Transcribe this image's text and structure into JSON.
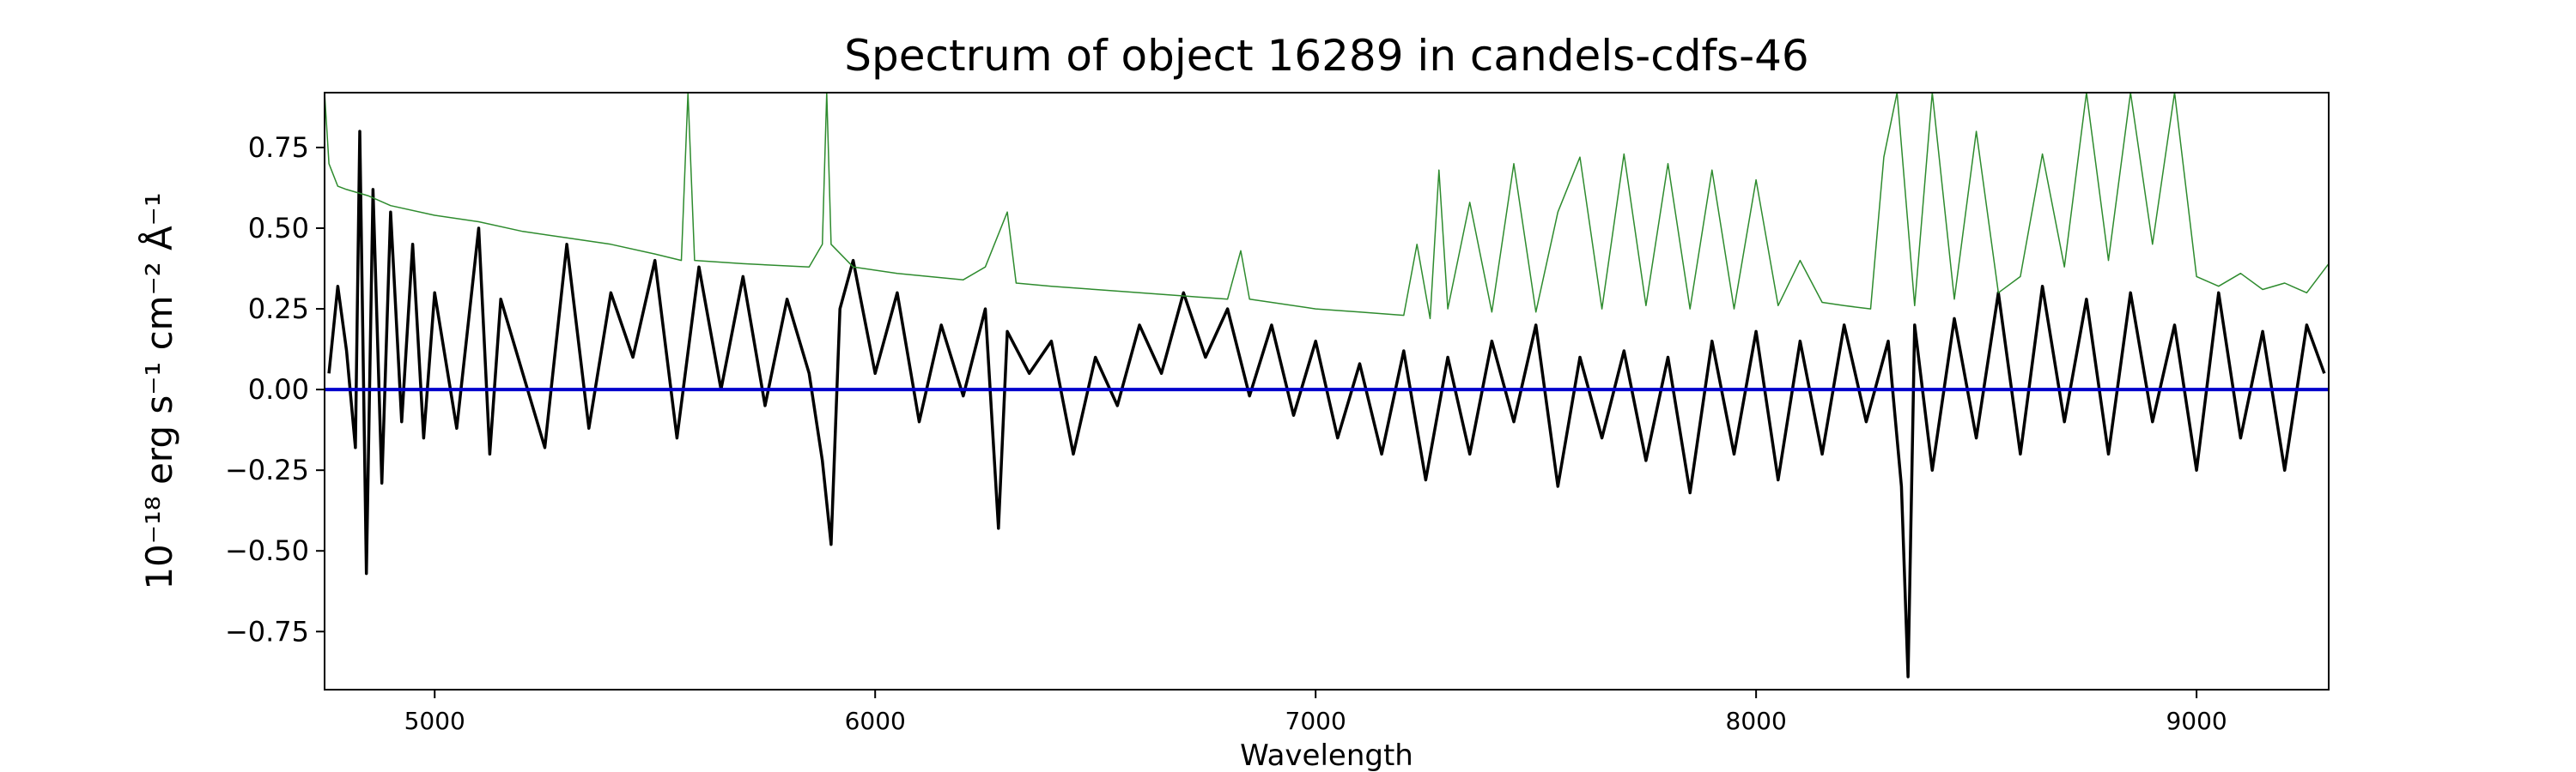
{
  "chart_data": {
    "type": "line",
    "title": "Spectrum of object 16289 in candels-cdfs-46",
    "xlabel": "Wavelength",
    "ylabel": "10⁻¹⁸ erg s⁻¹ cm⁻² Å⁻¹",
    "xlim": [
      4750,
      9300
    ],
    "ylim": [
      -0.93,
      0.92
    ],
    "xticks": [
      5000,
      6000,
      7000,
      8000,
      9000
    ],
    "xtick_labels": [
      "5000",
      "6000",
      "7000",
      "8000",
      "9000"
    ],
    "yticks": [
      0.75,
      0.5,
      0.25,
      0.0,
      -0.25,
      -0.5,
      -0.75
    ],
    "ytick_labels": [
      "0.75",
      "0.50",
      "0.25",
      "0.00",
      "−0.25",
      "−0.50",
      "−0.75"
    ],
    "grid": false,
    "legend": "none",
    "series": [
      {
        "role": "flux",
        "color": "#000000",
        "points": [
          [
            4760,
            0.05
          ],
          [
            4780,
            0.32
          ],
          [
            4800,
            0.12
          ],
          [
            4820,
            -0.18
          ],
          [
            4830,
            0.8
          ],
          [
            4845,
            -0.57
          ],
          [
            4860,
            0.62
          ],
          [
            4880,
            -0.29
          ],
          [
            4900,
            0.55
          ],
          [
            4925,
            -0.1
          ],
          [
            4950,
            0.45
          ],
          [
            4975,
            -0.15
          ],
          [
            5000,
            0.3
          ],
          [
            5050,
            -0.12
          ],
          [
            5100,
            0.5
          ],
          [
            5125,
            -0.2
          ],
          [
            5150,
            0.28
          ],
          [
            5200,
            0.05
          ],
          [
            5250,
            -0.18
          ],
          [
            5300,
            0.45
          ],
          [
            5350,
            -0.12
          ],
          [
            5400,
            0.3
          ],
          [
            5450,
            0.1
          ],
          [
            5500,
            0.4
          ],
          [
            5550,
            -0.15
          ],
          [
            5600,
            0.38
          ],
          [
            5650,
            0.0
          ],
          [
            5700,
            0.35
          ],
          [
            5750,
            -0.05
          ],
          [
            5800,
            0.28
          ],
          [
            5850,
            0.05
          ],
          [
            5880,
            -0.22
          ],
          [
            5900,
            -0.48
          ],
          [
            5920,
            0.25
          ],
          [
            5950,
            0.4
          ],
          [
            6000,
            0.05
          ],
          [
            6050,
            0.3
          ],
          [
            6100,
            -0.1
          ],
          [
            6150,
            0.2
          ],
          [
            6200,
            -0.02
          ],
          [
            6250,
            0.25
          ],
          [
            6280,
            -0.43
          ],
          [
            6300,
            0.18
          ],
          [
            6350,
            0.05
          ],
          [
            6400,
            0.15
          ],
          [
            6450,
            -0.2
          ],
          [
            6500,
            0.1
          ],
          [
            6550,
            -0.05
          ],
          [
            6600,
            0.2
          ],
          [
            6650,
            0.05
          ],
          [
            6700,
            0.3
          ],
          [
            6750,
            0.1
          ],
          [
            6800,
            0.25
          ],
          [
            6850,
            -0.02
          ],
          [
            6900,
            0.2
          ],
          [
            6950,
            -0.08
          ],
          [
            7000,
            0.15
          ],
          [
            7050,
            -0.15
          ],
          [
            7100,
            0.08
          ],
          [
            7150,
            -0.2
          ],
          [
            7200,
            0.12
          ],
          [
            7250,
            -0.28
          ],
          [
            7300,
            0.1
          ],
          [
            7350,
            -0.2
          ],
          [
            7400,
            0.15
          ],
          [
            7450,
            -0.1
          ],
          [
            7500,
            0.2
          ],
          [
            7550,
            -0.3
          ],
          [
            7600,
            0.1
          ],
          [
            7650,
            -0.15
          ],
          [
            7700,
            0.12
          ],
          [
            7750,
            -0.22
          ],
          [
            7800,
            0.1
          ],
          [
            7850,
            -0.32
          ],
          [
            7900,
            0.15
          ],
          [
            7950,
            -0.2
          ],
          [
            8000,
            0.18
          ],
          [
            8050,
            -0.28
          ],
          [
            8100,
            0.15
          ],
          [
            8150,
            -0.2
          ],
          [
            8200,
            0.2
          ],
          [
            8250,
            -0.1
          ],
          [
            8300,
            0.15
          ],
          [
            8330,
            -0.3
          ],
          [
            8345,
            -0.89
          ],
          [
            8360,
            0.2
          ],
          [
            8400,
            -0.25
          ],
          [
            8450,
            0.22
          ],
          [
            8500,
            -0.15
          ],
          [
            8550,
            0.3
          ],
          [
            8600,
            -0.2
          ],
          [
            8650,
            0.32
          ],
          [
            8700,
            -0.1
          ],
          [
            8750,
            0.28
          ],
          [
            8800,
            -0.2
          ],
          [
            8850,
            0.3
          ],
          [
            8900,
            -0.1
          ],
          [
            8950,
            0.2
          ],
          [
            9000,
            -0.25
          ],
          [
            9050,
            0.3
          ],
          [
            9100,
            -0.15
          ],
          [
            9150,
            0.18
          ],
          [
            9200,
            -0.25
          ],
          [
            9250,
            0.2
          ],
          [
            9290,
            0.05
          ]
        ]
      },
      {
        "role": "error",
        "color": "#2e8b2e",
        "points": [
          [
            4750,
            0.92
          ],
          [
            4760,
            0.7
          ],
          [
            4780,
            0.63
          ],
          [
            4800,
            0.62
          ],
          [
            4850,
            0.6
          ],
          [
            4900,
            0.57
          ],
          [
            5000,
            0.54
          ],
          [
            5100,
            0.52
          ],
          [
            5200,
            0.49
          ],
          [
            5300,
            0.47
          ],
          [
            5400,
            0.45
          ],
          [
            5500,
            0.42
          ],
          [
            5560,
            0.4
          ],
          [
            5575,
            0.92
          ],
          [
            5590,
            0.4
          ],
          [
            5700,
            0.39
          ],
          [
            5850,
            0.38
          ],
          [
            5880,
            0.45
          ],
          [
            5890,
            0.92
          ],
          [
            5900,
            0.45
          ],
          [
            5950,
            0.38
          ],
          [
            6050,
            0.36
          ],
          [
            6200,
            0.34
          ],
          [
            6250,
            0.38
          ],
          [
            6300,
            0.55
          ],
          [
            6320,
            0.33
          ],
          [
            6400,
            0.32
          ],
          [
            6500,
            0.31
          ],
          [
            6600,
            0.3
          ],
          [
            6700,
            0.29
          ],
          [
            6800,
            0.28
          ],
          [
            6830,
            0.43
          ],
          [
            6850,
            0.28
          ],
          [
            7000,
            0.25
          ],
          [
            7100,
            0.24
          ],
          [
            7200,
            0.23
          ],
          [
            7230,
            0.45
          ],
          [
            7260,
            0.22
          ],
          [
            7280,
            0.68
          ],
          [
            7300,
            0.25
          ],
          [
            7350,
            0.58
          ],
          [
            7400,
            0.24
          ],
          [
            7450,
            0.7
          ],
          [
            7500,
            0.24
          ],
          [
            7550,
            0.55
          ],
          [
            7600,
            0.72
          ],
          [
            7650,
            0.25
          ],
          [
            7700,
            0.73
          ],
          [
            7750,
            0.26
          ],
          [
            7800,
            0.7
          ],
          [
            7850,
            0.25
          ],
          [
            7900,
            0.68
          ],
          [
            7950,
            0.25
          ],
          [
            8000,
            0.65
          ],
          [
            8050,
            0.26
          ],
          [
            8100,
            0.4
          ],
          [
            8150,
            0.27
          ],
          [
            8200,
            0.26
          ],
          [
            8260,
            0.25
          ],
          [
            8290,
            0.72
          ],
          [
            8320,
            0.92
          ],
          [
            8360,
            0.26
          ],
          [
            8400,
            0.92
          ],
          [
            8450,
            0.28
          ],
          [
            8500,
            0.8
          ],
          [
            8550,
            0.3
          ],
          [
            8600,
            0.35
          ],
          [
            8650,
            0.73
          ],
          [
            8700,
            0.38
          ],
          [
            8750,
            0.92
          ],
          [
            8800,
            0.4
          ],
          [
            8850,
            0.92
          ],
          [
            8900,
            0.45
          ],
          [
            8950,
            0.92
          ],
          [
            9000,
            0.35
          ],
          [
            9050,
            0.32
          ],
          [
            9100,
            0.36
          ],
          [
            9150,
            0.31
          ],
          [
            9200,
            0.33
          ],
          [
            9250,
            0.3
          ],
          [
            9300,
            0.39
          ]
        ]
      },
      {
        "role": "model",
        "color": "#0000cc",
        "points": [
          [
            4750,
            0.0
          ],
          [
            9300,
            0.0
          ]
        ]
      }
    ]
  }
}
